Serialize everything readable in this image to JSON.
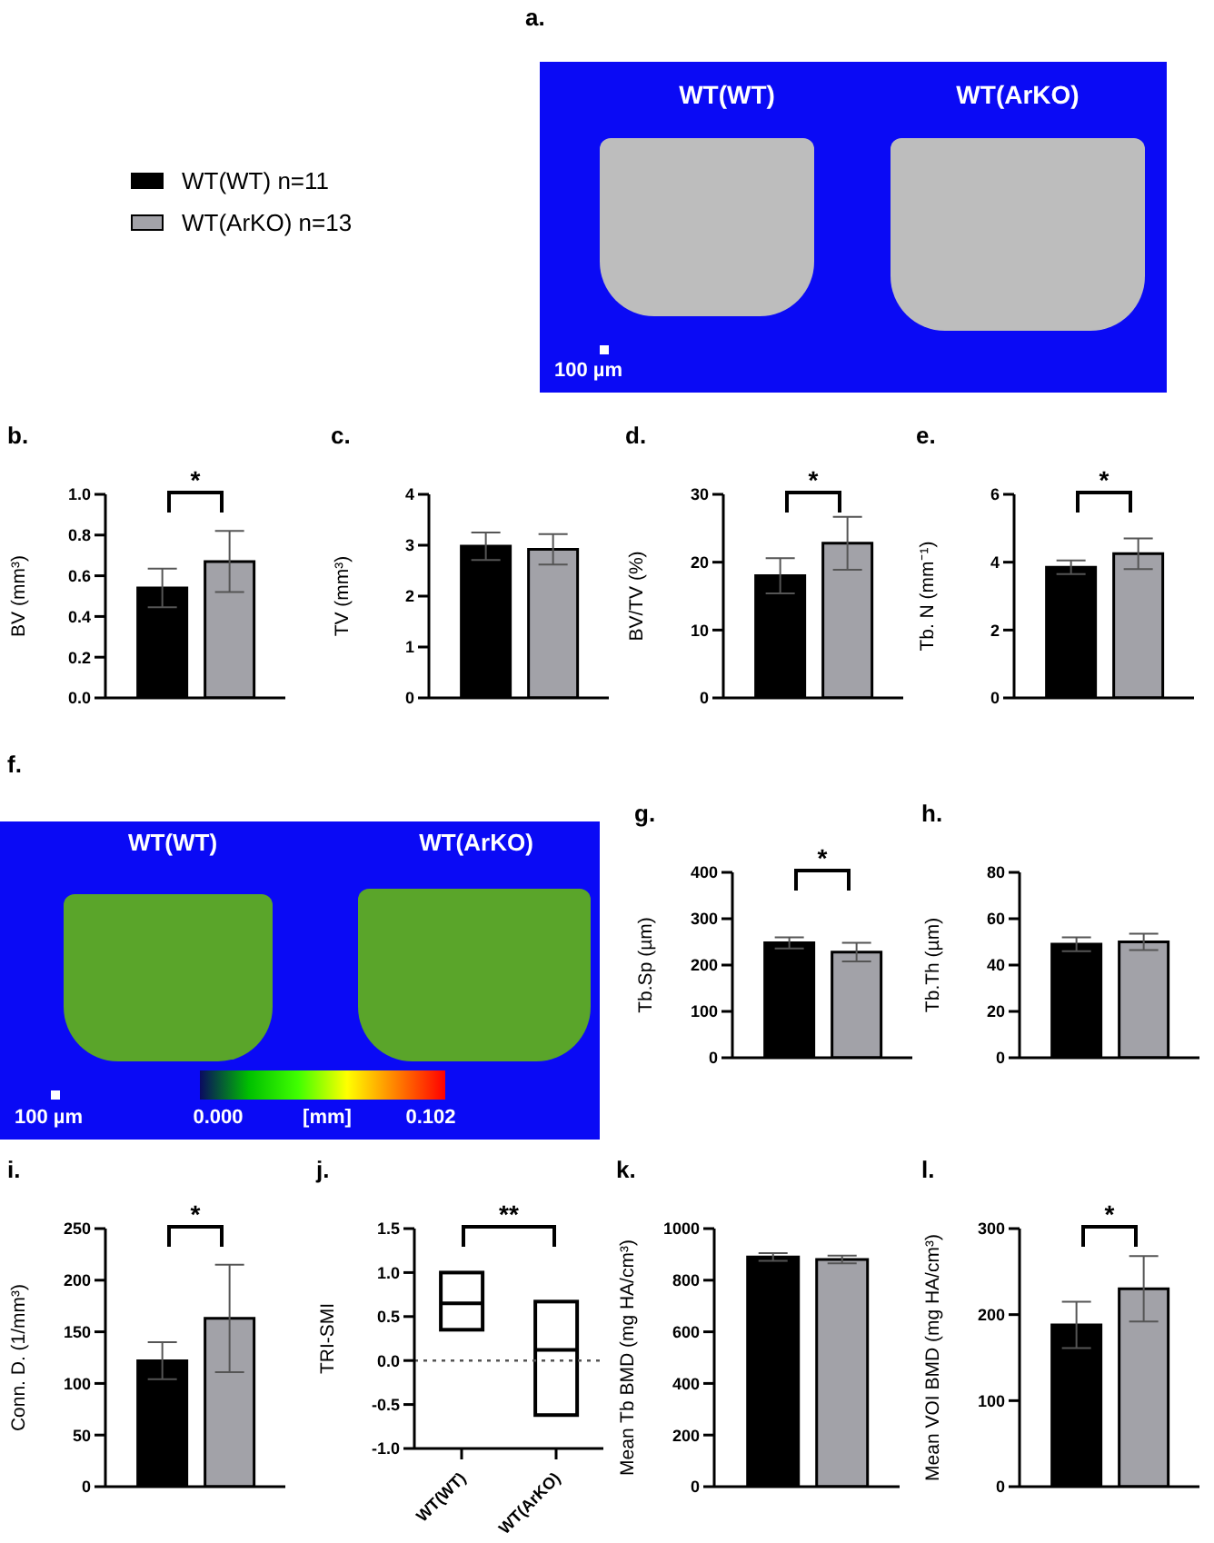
{
  "chart_data": [
    {
      "type": "other",
      "title": "a.",
      "annotations": [
        "WT(WT)",
        "WT(ArKO)",
        "100 µm"
      ]
    },
    {
      "type": "bar",
      "title": "b.",
      "ylabel": "BV (mm³)",
      "categories": [
        null
      ],
      "legend": "top",
      "series": [
        {
          "name": "WT(WT) n=11",
          "color": "#000000",
          "values": [
            0.54
          ],
          "errors": [
            0.095
          ]
        },
        {
          "name": "WT(ArKO) n=13",
          "color": "#a2a2a8",
          "values": [
            0.67
          ],
          "errors": [
            0.15
          ]
        }
      ],
      "ylim": [
        0,
        1.0
      ],
      "yticks": [
        {
          "value": 0,
          "label": "0.0"
        },
        {
          "value": 0.2,
          "label": "0.2"
        },
        {
          "value": 0.4,
          "label": "0.4"
        },
        {
          "value": 0.6,
          "label": "0.6"
        },
        {
          "value": 0.8,
          "label": "0.8"
        },
        {
          "value": 1.0,
          "label": "1.0"
        }
      ],
      "annotations": [
        "*"
      ]
    },
    {
      "type": "bar",
      "title": "c.",
      "ylabel": "TV (mm³)",
      "categories": [
        null
      ],
      "series": [
        {
          "color": "#000000",
          "values": [
            2.98
          ],
          "errors": [
            0.27
          ]
        },
        {
          "color": "#a2a2a8",
          "values": [
            2.92
          ],
          "errors": [
            0.3
          ]
        }
      ],
      "ylim": [
        0,
        4
      ],
      "yticks": [
        0,
        1,
        2,
        3,
        4
      ]
    },
    {
      "type": "bar",
      "title": "d.",
      "ylabel": "BV/TV (%)",
      "categories": [
        null
      ],
      "series": [
        {
          "color": "#000000",
          "values": [
            18
          ],
          "errors": [
            2.6
          ]
        },
        {
          "color": "#a2a2a8",
          "values": [
            22.8
          ],
          "errors": [
            3.9
          ]
        }
      ],
      "ylim": [
        0,
        30
      ],
      "yticks": [
        0,
        10,
        20,
        30
      ],
      "annotations": [
        "*"
      ]
    },
    {
      "type": "bar",
      "title": "e.",
      "ylabel": "Tb. N (mm⁻¹)",
      "categories": [
        null
      ],
      "series": [
        {
          "color": "#000000",
          "values": [
            3.85
          ],
          "errors": [
            0.2
          ]
        },
        {
          "color": "#a2a2a8",
          "values": [
            4.25
          ],
          "errors": [
            0.45
          ]
        }
      ],
      "ylim": [
        0,
        6
      ],
      "yticks": [
        0,
        2,
        4,
        6
      ],
      "annotations": [
        "*"
      ]
    },
    {
      "type": "other",
      "title": "f.",
      "annotations": [
        "WT(WT)",
        "WT(ArKO)",
        "100 µm",
        "0.000",
        "[mm]",
        "0.102"
      ]
    },
    {
      "type": "bar",
      "title": "g.",
      "ylabel": "Tb.Sp (µm)",
      "categories": [
        null
      ],
      "series": [
        {
          "color": "#000000",
          "values": [
            248
          ],
          "errors": [
            12
          ]
        },
        {
          "color": "#a2a2a8",
          "values": [
            228
          ],
          "errors": [
            20
          ]
        }
      ],
      "ylim": [
        0,
        400
      ],
      "yticks": [
        0,
        100,
        200,
        300,
        400
      ],
      "annotations": [
        "*"
      ]
    },
    {
      "type": "bar",
      "title": "h.",
      "ylabel": "Tb.Th (µm)",
      "categories": [
        null
      ],
      "series": [
        {
          "color": "#000000",
          "values": [
            49
          ],
          "errors": [
            3
          ]
        },
        {
          "color": "#a2a2a8",
          "values": [
            50
          ],
          "errors": [
            3.5
          ]
        }
      ],
      "ylim": [
        0,
        80
      ],
      "yticks": [
        0,
        20,
        40,
        60,
        80
      ]
    },
    {
      "type": "bar",
      "title": "i.",
      "ylabel": "Conn. D. (1/mm³)",
      "categories": [
        null
      ],
      "series": [
        {
          "color": "#000000",
          "values": [
            122
          ],
          "errors": [
            18
          ]
        },
        {
          "color": "#a2a2a8",
          "values": [
            163
          ],
          "errors": [
            52
          ]
        }
      ],
      "ylim": [
        0,
        250
      ],
      "yticks": [
        0,
        50,
        100,
        150,
        200,
        250
      ],
      "annotations": [
        "*"
      ]
    },
    {
      "type": "box",
      "title": "j.",
      "ylabel": "TRI-SMI",
      "categories": [
        "WT(WT)",
        "WT(ArKO)"
      ],
      "boxes": [
        {
          "low": 0.35,
          "q1": 0.35,
          "median": 0.65,
          "q3": 1.0,
          "high": 1.0
        },
        {
          "low": -0.62,
          "q1": -0.62,
          "median": 0.12,
          "q3": 0.67,
          "high": 0.67
        }
      ],
      "ylim": [
        -1.0,
        1.5
      ],
      "yticks": [
        {
          "value": -1.0,
          "label": "-1.0"
        },
        {
          "value": -0.5,
          "label": "-0.5"
        },
        {
          "value": 0,
          "label": "0.0"
        },
        {
          "value": 0.5,
          "label": "0.5"
        },
        {
          "value": 1.0,
          "label": "1.0"
        },
        {
          "value": 1.5,
          "label": "1.5"
        }
      ],
      "ref_lines": [
        {
          "axis": "y",
          "value": 0,
          "color": "#555555",
          "line_style": "dotted"
        }
      ],
      "annotations": [
        "**"
      ]
    },
    {
      "type": "bar",
      "title": "k.",
      "ylabel": "Mean Tb BMD (mg HA/cm³)",
      "categories": [
        null
      ],
      "series": [
        {
          "color": "#000000",
          "values": [
            890
          ],
          "errors": [
            15
          ]
        },
        {
          "color": "#a2a2a8",
          "values": [
            880
          ],
          "errors": [
            15
          ]
        }
      ],
      "ylim": [
        0,
        1000
      ],
      "yticks": [
        0,
        200,
        400,
        600,
        800,
        1000
      ]
    },
    {
      "type": "bar",
      "title": "l.",
      "ylabel": "Mean VOI BMD (mg HA/cm³)",
      "categories": [
        null
      ],
      "series": [
        {
          "color": "#000000",
          "values": [
            188
          ],
          "errors": [
            27
          ]
        },
        {
          "color": "#a2a2a8",
          "values": [
            230
          ],
          "errors": [
            38
          ]
        }
      ],
      "ylim": [
        0,
        300
      ],
      "yticks": [
        0,
        100,
        200,
        300
      ],
      "annotations": [
        "*"
      ]
    }
  ]
}
